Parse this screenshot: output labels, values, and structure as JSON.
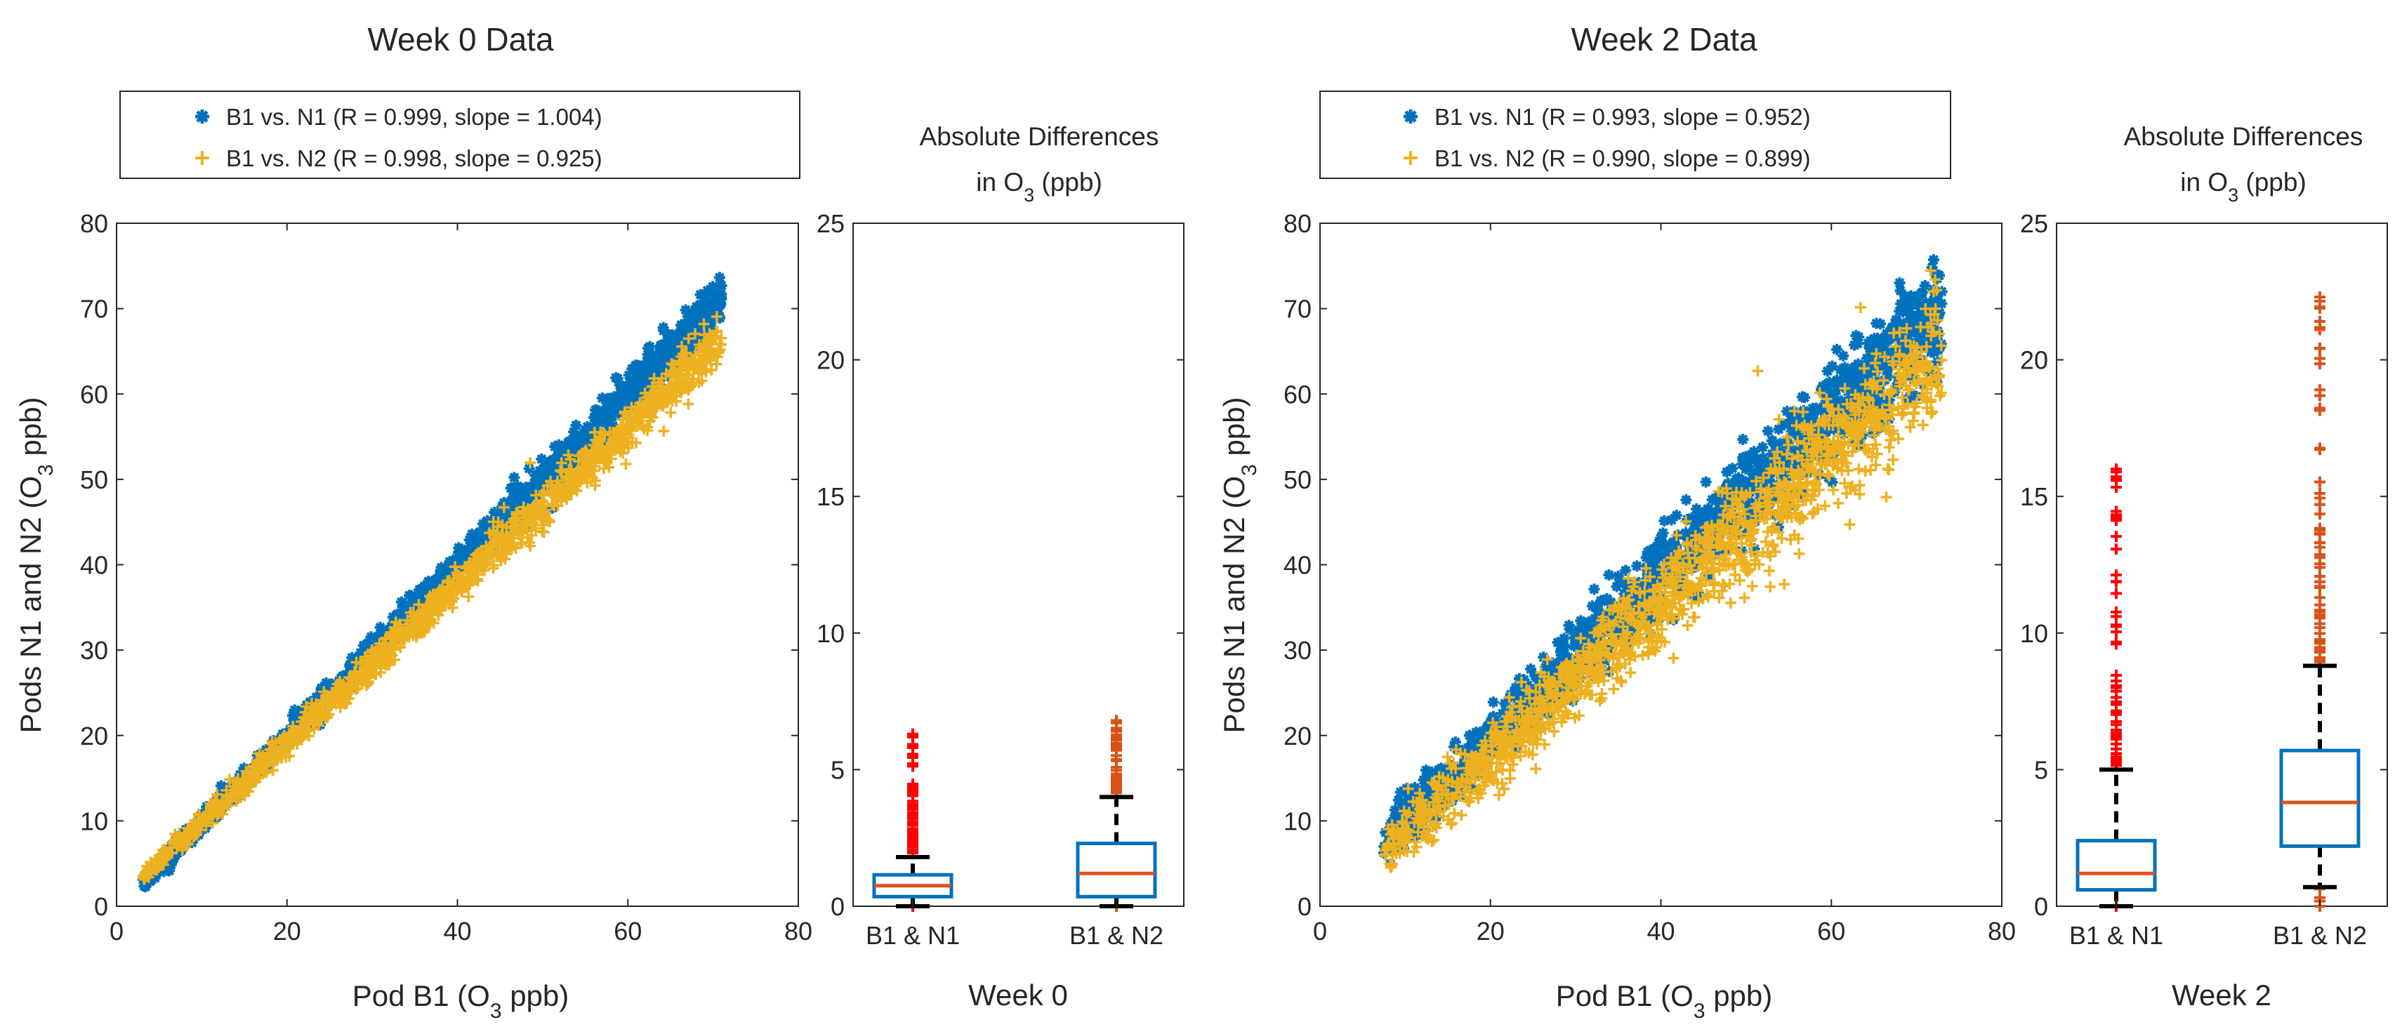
{
  "colors": {
    "n1": "#0072BD",
    "n2": "#EDB120",
    "outlier_n1": "#FF0000",
    "outlier_n2": "#D95319",
    "median": "#D95319",
    "box": "#0072BD",
    "whisker": "#000000",
    "axes": "#262626"
  },
  "chart_data": [
    {
      "type": "scatter",
      "panel": "week0-scatter",
      "title": "Week 0 Data",
      "xlabel": "Pod B1 (O₃ ppb)",
      "xlabel_main": "Pod B1 (O",
      "xlabel_sub": "3",
      "xlabel_tail": " ppb)",
      "ylabel_main": "Pods N1 and N2 (O",
      "ylabel_sub": "3",
      "ylabel_tail": " ppb)",
      "xlim": [
        0,
        80
      ],
      "ylim": [
        0,
        80
      ],
      "xticks": [
        "0",
        "20",
        "40",
        "60",
        "80"
      ],
      "yticks": [
        "0",
        "10",
        "20",
        "30",
        "40",
        "50",
        "60",
        "70",
        "80"
      ],
      "series": [
        {
          "name": "B1 vs. N1 (R = 0.999, slope = 1.004)",
          "marker": "asterisk",
          "x_range": [
            3,
            71
          ],
          "slope": 1.004,
          "intercept": -0.3,
          "spread": 0.9
        },
        {
          "name": "B1 vs. N2 (R = 0.998, slope = 0.925)",
          "marker": "plus",
          "x_range": [
            3,
            71
          ],
          "slope": 0.925,
          "intercept": 0.6,
          "spread": 1.0
        }
      ]
    },
    {
      "type": "box",
      "panel": "week0-box",
      "title_main": "Absolute Differences",
      "title_line2_main": "in O",
      "title_line2_sub": "3",
      "title_line2_tail": " (ppb)",
      "xlabel": "Week 0",
      "ylim": [
        0,
        25
      ],
      "yticks": [
        "0",
        "5",
        "10",
        "15",
        "20",
        "25"
      ],
      "categories": [
        "B1 & N1",
        "B1 & N2"
      ],
      "boxes": [
        {
          "q1": 0.35,
          "median": 0.75,
          "q3": 1.15,
          "whisker_low": 0.0,
          "whisker_high": 1.8,
          "outliers_max": 6.3
        },
        {
          "q1": 0.35,
          "median": 1.2,
          "q3": 2.3,
          "whisker_low": 0.0,
          "whisker_high": 4.0,
          "outliers_max": 6.8
        }
      ]
    },
    {
      "type": "scatter",
      "panel": "week2-scatter",
      "title": "Week 2 Data",
      "xlabel": "Pod B1 (O₃ ppb)",
      "xlabel_main": "Pod B1 (O",
      "xlabel_sub": "3",
      "xlabel_tail": " ppb)",
      "ylabel_main": "Pods N1 and N2 (O",
      "ylabel_sub": "3",
      "ylabel_tail": " ppb)",
      "xlim": [
        0,
        80
      ],
      "ylim": [
        0,
        80
      ],
      "xticks": [
        "0",
        "20",
        "40",
        "60",
        "80"
      ],
      "yticks": [
        "0",
        "10",
        "20",
        "30",
        "40",
        "50",
        "60",
        "70",
        "80"
      ],
      "series": [
        {
          "name": "B1 vs. N1 (R = 0.993, slope = 0.952)",
          "marker": "asterisk",
          "x_range": [
            7.5,
            73
          ],
          "slope": 0.952,
          "intercept": 0.6,
          "spread": 2.2
        },
        {
          "name": "B1 vs. N2 (R = 0.990, slope = 0.899)",
          "marker": "plus",
          "x_range": [
            7.5,
            73
          ],
          "slope": 0.899,
          "intercept": -0.5,
          "spread": 2.6
        }
      ]
    },
    {
      "type": "box",
      "panel": "week2-box",
      "title_main": "Absolute Differences",
      "title_line2_main": "in O",
      "title_line2_sub": "3",
      "title_line2_tail": " (ppb)",
      "xlabel": "Week 2",
      "ylim": [
        0,
        25
      ],
      "yticks": [
        "0",
        "5",
        "10",
        "15",
        "20",
        "25"
      ],
      "categories": [
        "B1 & N1",
        "B1 & N2"
      ],
      "boxes": [
        {
          "q1": 0.6,
          "median": 1.2,
          "q3": 2.4,
          "whisker_low": 0.0,
          "whisker_high": 5.0,
          "outliers_max": 16.0
        },
        {
          "q1": 2.2,
          "median": 3.8,
          "q3": 5.7,
          "whisker_low": 0.7,
          "whisker_high": 8.8,
          "outliers_max": 22.3
        }
      ]
    }
  ]
}
